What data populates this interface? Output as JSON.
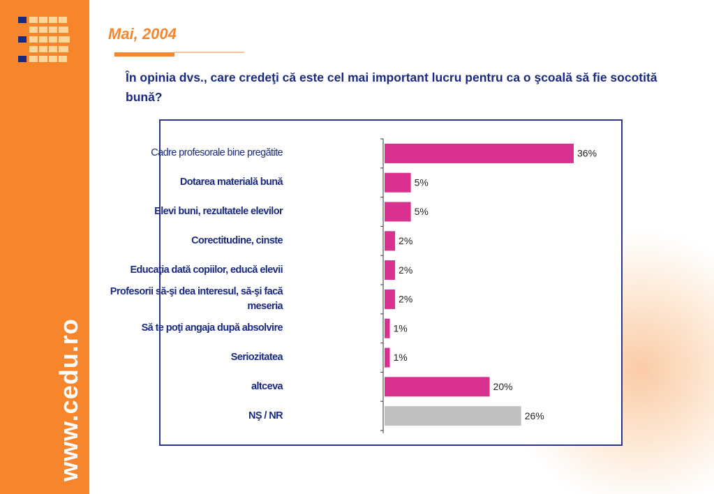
{
  "header": {
    "date": "Mai, 2004",
    "question": "În opinia dvs., care credeţi că este cel mai important lucru pentru ca o şcoală să fie socotită bună?",
    "website": "www.cedu.ro"
  },
  "chart_data": {
    "type": "bar",
    "orientation": "horizontal",
    "categories": [
      "Cadre profesorale bine pregătite",
      "Dotarea materială bună",
      "Elevi buni, rezultatele elevilor",
      "Corectitudine, cinste",
      "Educaţia dată copiilor, educă elevii",
      "Profesorii să-şi dea interesul, să-şi facă meseria",
      "Să te poţi angaja după absolvire",
      "Seriozitatea",
      "altceva",
      "NŞ / NR"
    ],
    "values": [
      36,
      5,
      5,
      2,
      2,
      2,
      1,
      1,
      20,
      26
    ],
    "value_labels": [
      "36%",
      "5%",
      "5%",
      "2%",
      "2%",
      "2%",
      "1%",
      "1%",
      "20%",
      "26%"
    ],
    "colors": [
      "#d8318f",
      "#d8318f",
      "#d8318f",
      "#d8318f",
      "#d8318f",
      "#d8318f",
      "#d8318f",
      "#d8318f",
      "#d8318f",
      "#c0c0c0"
    ]
  }
}
